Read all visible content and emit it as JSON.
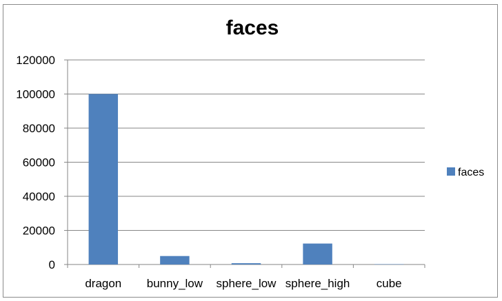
{
  "chart_data": {
    "type": "bar",
    "title": "faces",
    "xlabel": "",
    "ylabel": "",
    "categories": [
      "dragon",
      "bunny_low",
      "sphere_low",
      "sphere_high",
      "cube"
    ],
    "series": [
      {
        "name": "faces",
        "values": [
          100000,
          4968,
          760,
          12288,
          12
        ]
      }
    ],
    "ylim": [
      0,
      120000
    ],
    "yticks": [
      "0",
      "20000",
      "40000",
      "60000",
      "80000",
      "100000",
      "120000"
    ],
    "grid": true,
    "legend": "right",
    "colors": {
      "bar": "#4F81BD",
      "grid": "#868686",
      "axis": "#868686"
    }
  }
}
